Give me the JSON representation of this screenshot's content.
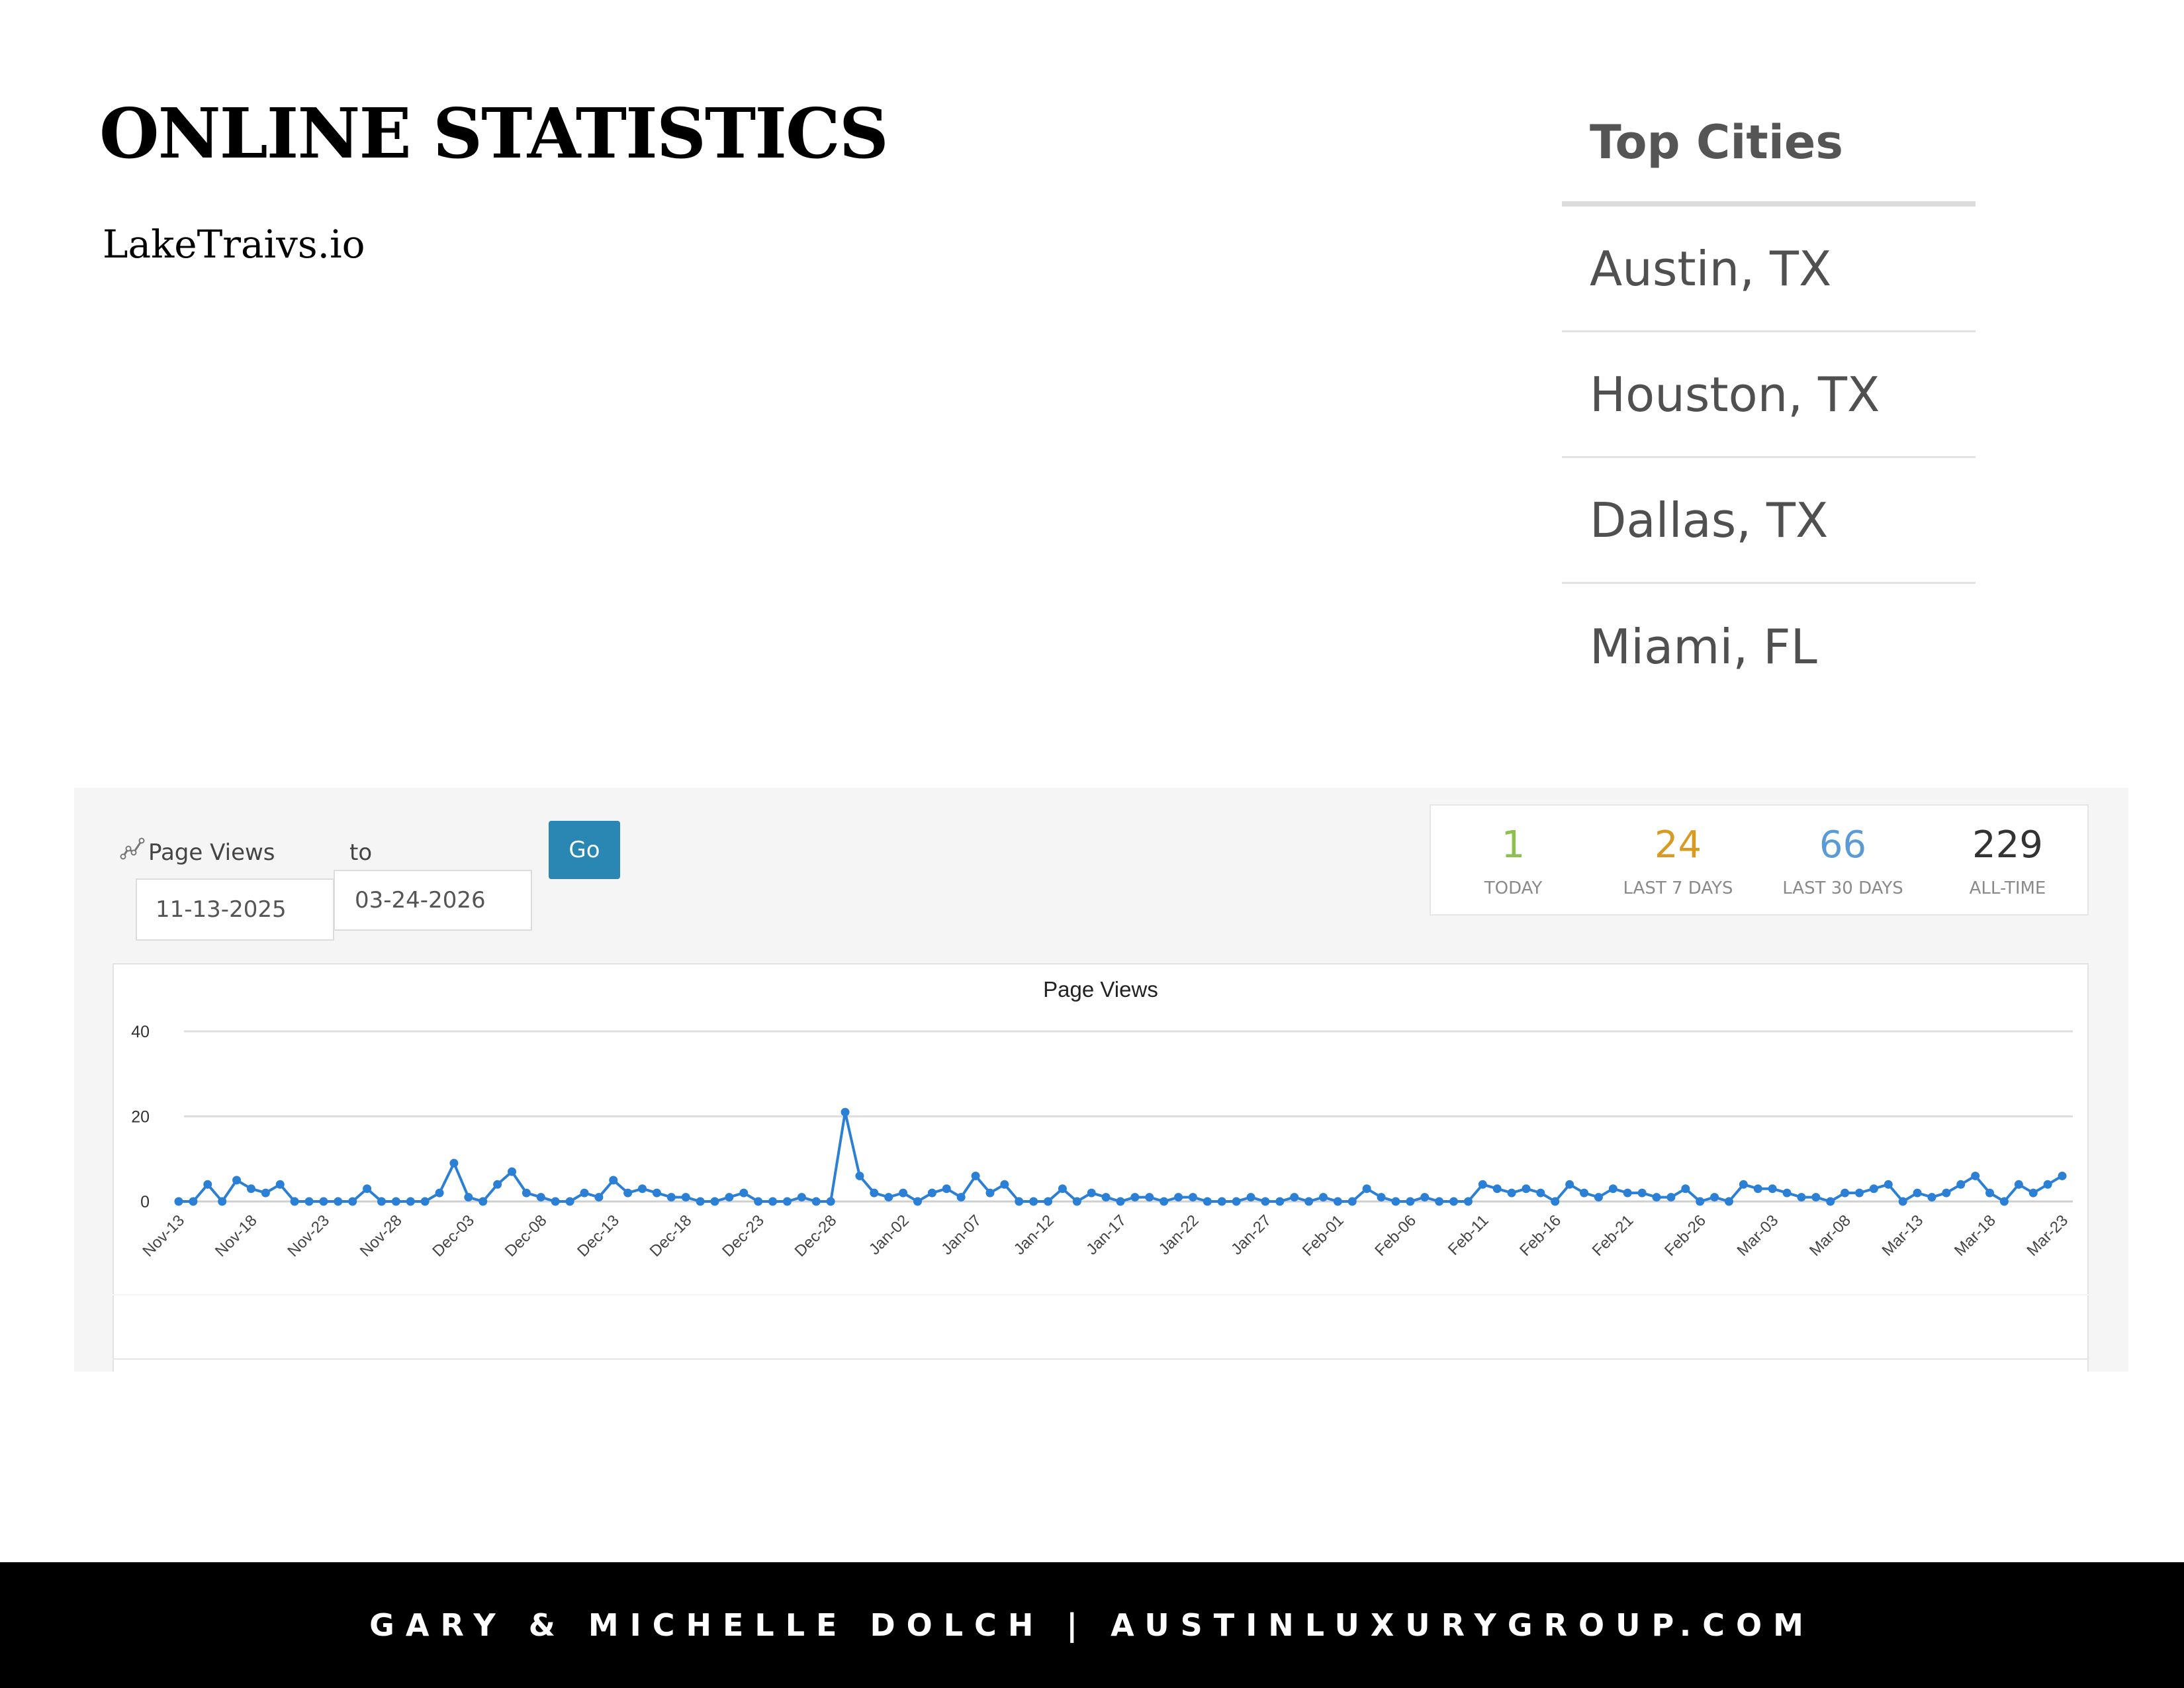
{
  "title": "ONLINE STATISTICS",
  "site": "LakeTraivs.io",
  "top_cities": {
    "header": "Top Cities",
    "cities": [
      "Austin, TX",
      "Houston, TX",
      "Dallas, TX",
      "Miami, FL"
    ]
  },
  "controls": {
    "metric_label": "Page Views",
    "to_label": "to",
    "from_date": "11-13-2025",
    "to_date": "03-24-2026",
    "go_label": "Go"
  },
  "summary": [
    {
      "value": "1",
      "label": "TODAY",
      "color": "#8cc152"
    },
    {
      "value": "24",
      "label": "LAST 7 DAYS",
      "color": "#d89a22"
    },
    {
      "value": "66",
      "label": "LAST 30 DAYS",
      "color": "#5b9bd5"
    },
    {
      "value": "229",
      "label": "ALL-TIME",
      "color": "#333333"
    }
  ],
  "chart_data": {
    "type": "line",
    "title": "Page Views",
    "ylim": [
      0,
      40
    ],
    "yticks": [
      0,
      20,
      40
    ],
    "grid": true,
    "color": "#2b7fd4",
    "xtick_labels": [
      "Nov-13",
      "Nov-18",
      "Nov-23",
      "Nov-28",
      "Dec-03",
      "Dec-08",
      "Dec-13",
      "Dec-18",
      "Dec-23",
      "Dec-28",
      "Jan-02",
      "Jan-07",
      "Jan-12",
      "Jan-17",
      "Jan-22",
      "Jan-27",
      "Feb-01",
      "Feb-06",
      "Feb-11",
      "Feb-16",
      "Feb-21",
      "Feb-26",
      "Mar-03",
      "Mar-08",
      "Mar-13",
      "Mar-18",
      "Mar-23"
    ],
    "start_date": "Nov-13",
    "end_date": "Mar-23",
    "values": [
      0,
      0,
      4,
      0,
      5,
      3,
      2,
      4,
      0,
      0,
      0,
      0,
      0,
      3,
      0,
      0,
      0,
      0,
      2,
      9,
      1,
      0,
      4,
      7,
      2,
      1,
      0,
      0,
      2,
      1,
      5,
      2,
      3,
      2,
      1,
      1,
      0,
      0,
      1,
      2,
      0,
      0,
      0,
      1,
      0,
      0,
      21,
      6,
      2,
      1,
      2,
      0,
      2,
      3,
      1,
      6,
      2,
      4,
      0,
      0,
      0,
      3,
      0,
      2,
      1,
      0,
      1,
      1,
      0,
      1,
      1,
      0,
      0,
      0,
      1,
      0,
      0,
      1,
      0,
      1,
      0,
      0,
      3,
      1,
      0,
      0,
      1,
      0,
      0,
      0,
      4,
      3,
      2,
      3,
      2,
      0,
      4,
      2,
      1,
      3,
      2,
      2,
      1,
      1,
      3,
      0,
      1,
      0,
      4,
      3,
      3,
      2,
      1,
      1,
      0,
      2,
      2,
      3,
      4,
      0,
      2,
      1,
      2,
      4,
      6,
      2,
      0,
      4,
      2,
      4,
      6
    ]
  },
  "footer": "GARY & MICHELLE DOLCH  |  AUSTINLUXURYGROUP.COM"
}
